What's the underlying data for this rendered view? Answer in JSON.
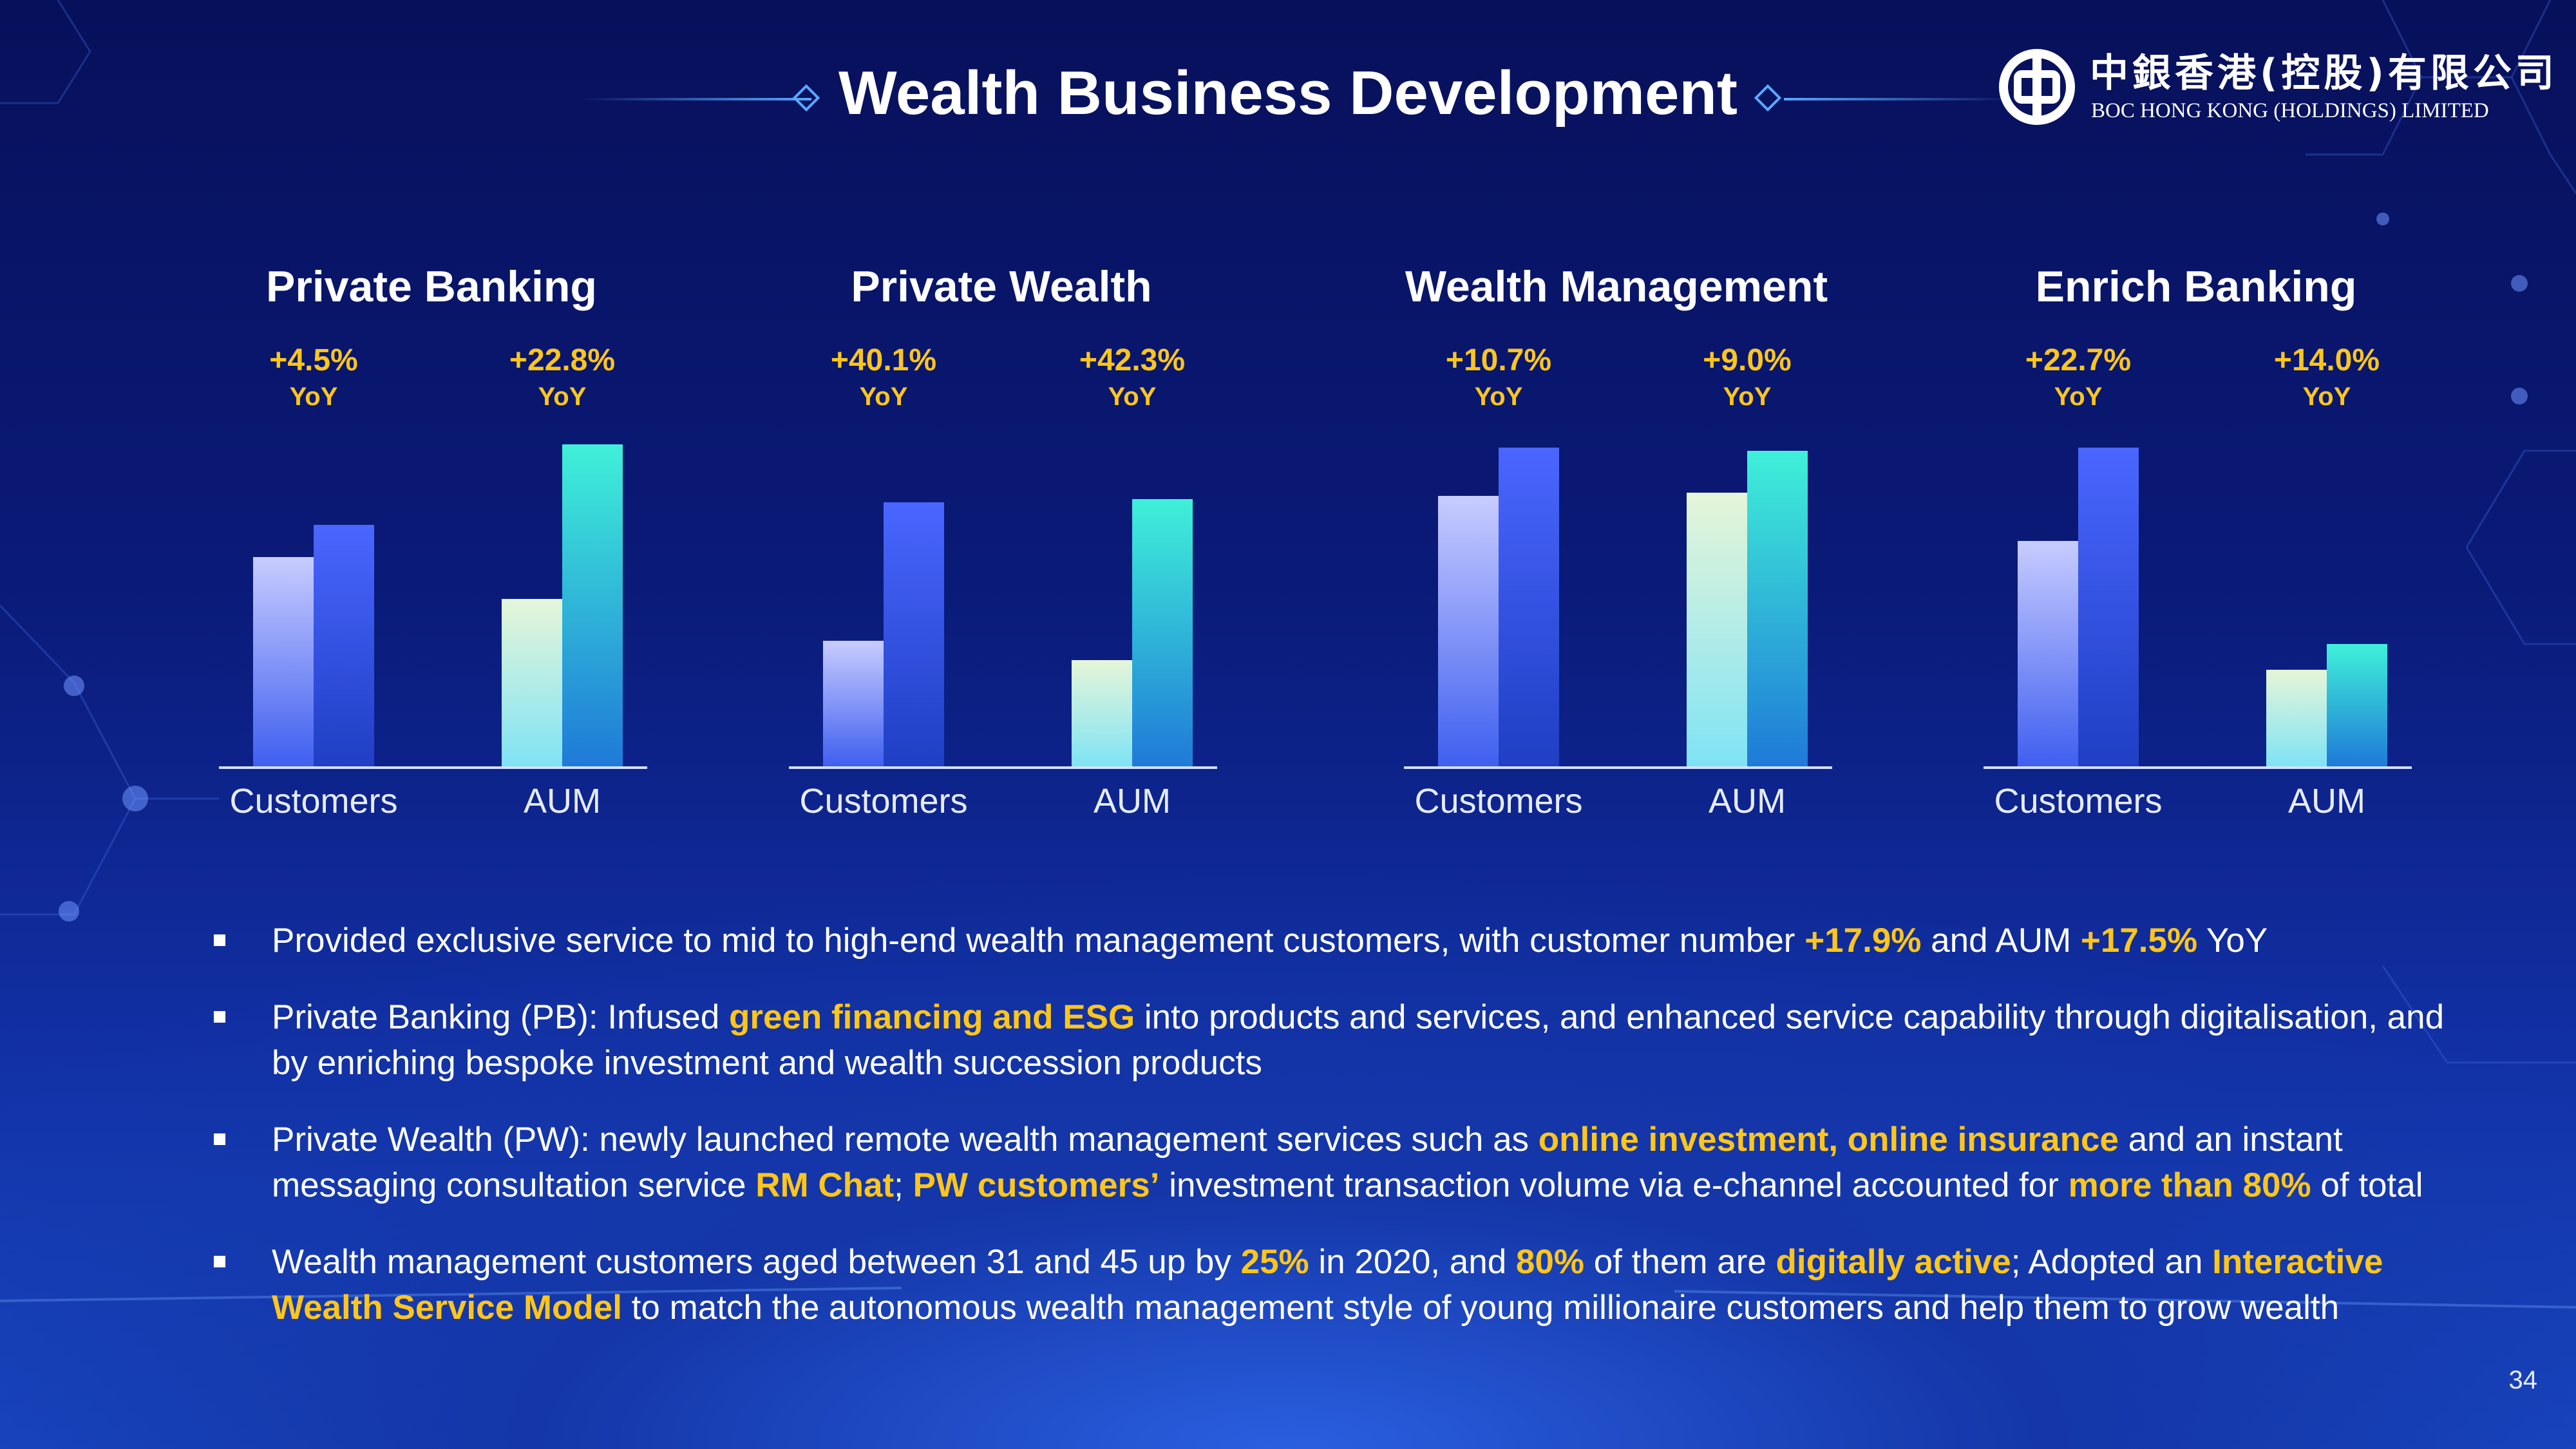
{
  "slide": {
    "title": "Wealth Business Development",
    "page_number": "34",
    "logo": {
      "name_cn": "中銀香港(控股)有限公司",
      "name_en": "BOC HONG KONG (HOLDINGS) LIMITED"
    }
  },
  "chart_data": [
    {
      "type": "bar",
      "title": "Private Banking",
      "categories": [
        "Customers",
        "AUM"
      ],
      "series": [
        {
          "values": [
            0.65,
            0.52
          ]
        },
        {
          "values": [
            0.75,
            1.0
          ]
        }
      ],
      "growth": [
        {
          "pct": "+4.5%",
          "label": "YoY"
        },
        {
          "pct": "+22.8%",
          "label": "YoY"
        }
      ]
    },
    {
      "type": "bar",
      "title": "Private Wealth",
      "categories": [
        "Customers",
        "AUM"
      ],
      "series": [
        {
          "values": [
            0.39,
            0.33
          ]
        },
        {
          "values": [
            0.82,
            0.83
          ]
        }
      ],
      "growth": [
        {
          "pct": "+40.1%",
          "label": "YoY"
        },
        {
          "pct": "+42.3%",
          "label": "YoY"
        }
      ]
    },
    {
      "type": "bar",
      "title": "Wealth Management",
      "categories": [
        "Customers",
        "AUM"
      ],
      "series": [
        {
          "values": [
            0.84,
            0.85
          ]
        },
        {
          "values": [
            0.99,
            0.98
          ]
        }
      ],
      "growth": [
        {
          "pct": "+10.7%",
          "label": "YoY"
        },
        {
          "pct": "+9.0%",
          "label": "YoY"
        }
      ]
    },
    {
      "type": "bar",
      "title": "Enrich Banking",
      "categories": [
        "Customers",
        "AUM"
      ],
      "series": [
        {
          "values": [
            0.7,
            0.3
          ]
        },
        {
          "values": [
            0.99,
            0.38
          ]
        }
      ],
      "growth": [
        {
          "pct": "+22.7%",
          "label": "YoY"
        },
        {
          "pct": "+14.0%",
          "label": "YoY"
        }
      ]
    }
  ],
  "bullets": [
    [
      {
        "text": "Provided exclusive service to mid to high-end wealth management customers, with customer number "
      },
      {
        "text": "+17.9%",
        "hl": true
      },
      {
        "text": " and AUM "
      },
      {
        "text": "+17.5%",
        "hl": true
      },
      {
        "text": " YoY"
      }
    ],
    [
      {
        "text": "Private Banking (PB): Infused "
      },
      {
        "text": "green financing and ESG",
        "hl": true
      },
      {
        "text": " into products and services, and enhanced service capability through digitalisation, and by enriching bespoke investment and wealth succession products"
      }
    ],
    [
      {
        "text": "Private Wealth (PW): newly launched remote wealth management services such as "
      },
      {
        "text": "online investment, online insurance",
        "hl": true
      },
      {
        "text": "  and an instant messaging consultation service "
      },
      {
        "text": "RM Chat",
        "hl": true
      },
      {
        "text": "; "
      },
      {
        "text": "PW customers’",
        "hl": true
      },
      {
        "text": " investment transaction volume via e-channel accounted for "
      },
      {
        "text": "more than 80%",
        "hl": true
      },
      {
        "text": " of total"
      }
    ],
    [
      {
        "text": "Wealth management customers aged between 31 and 45 up by "
      },
      {
        "text": "25%",
        "hl": true
      },
      {
        "text": " in 2020, and "
      },
      {
        "text": "80%",
        "hl": true
      },
      {
        "text": " of them are "
      },
      {
        "text": "digitally active",
        "hl": true
      },
      {
        "text": "; Adopted an "
      },
      {
        "text": "Interactive Wealth Service Model",
        "hl": true
      },
      {
        "text": " to match the autonomous wealth management style of young millionaire customers and help them to grow wealth"
      }
    ]
  ],
  "colors": {
    "highlight": "#ffc61a",
    "customers_prior": [
      "#c8ccff",
      "#3f5ff0"
    ],
    "customers_current": [
      "#4a66ff",
      "#1f3fc4"
    ],
    "aum_prior": [
      "#e6f5d8",
      "#7fe3f5"
    ],
    "aum_current": [
      "#3ff0d8",
      "#1f7ad8"
    ]
  }
}
